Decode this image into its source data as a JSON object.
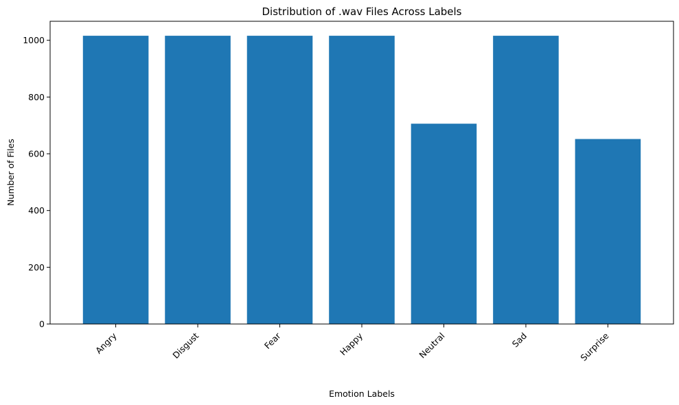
{
  "chart_data": {
    "type": "bar",
    "title": "Distribution of .wav Files Across Labels",
    "xlabel": "Emotion Labels",
    "ylabel": "Number of Files",
    "categories": [
      "Angry",
      "Disgust",
      "Fear",
      "Happy",
      "Neutral",
      "Sad",
      "Surprise"
    ],
    "values": [
      1016,
      1016,
      1016,
      1016,
      706,
      1016,
      652
    ],
    "ylim": [
      0,
      1067
    ],
    "yticks": [
      0,
      200,
      400,
      600,
      800,
      1000
    ],
    "ytick_labels": [
      "0",
      "200",
      "400",
      "600",
      "800",
      "1000"
    ],
    "grid": false,
    "legend": "none",
    "bar_color": "#1f77b4",
    "x_tick_rotation": 45
  }
}
